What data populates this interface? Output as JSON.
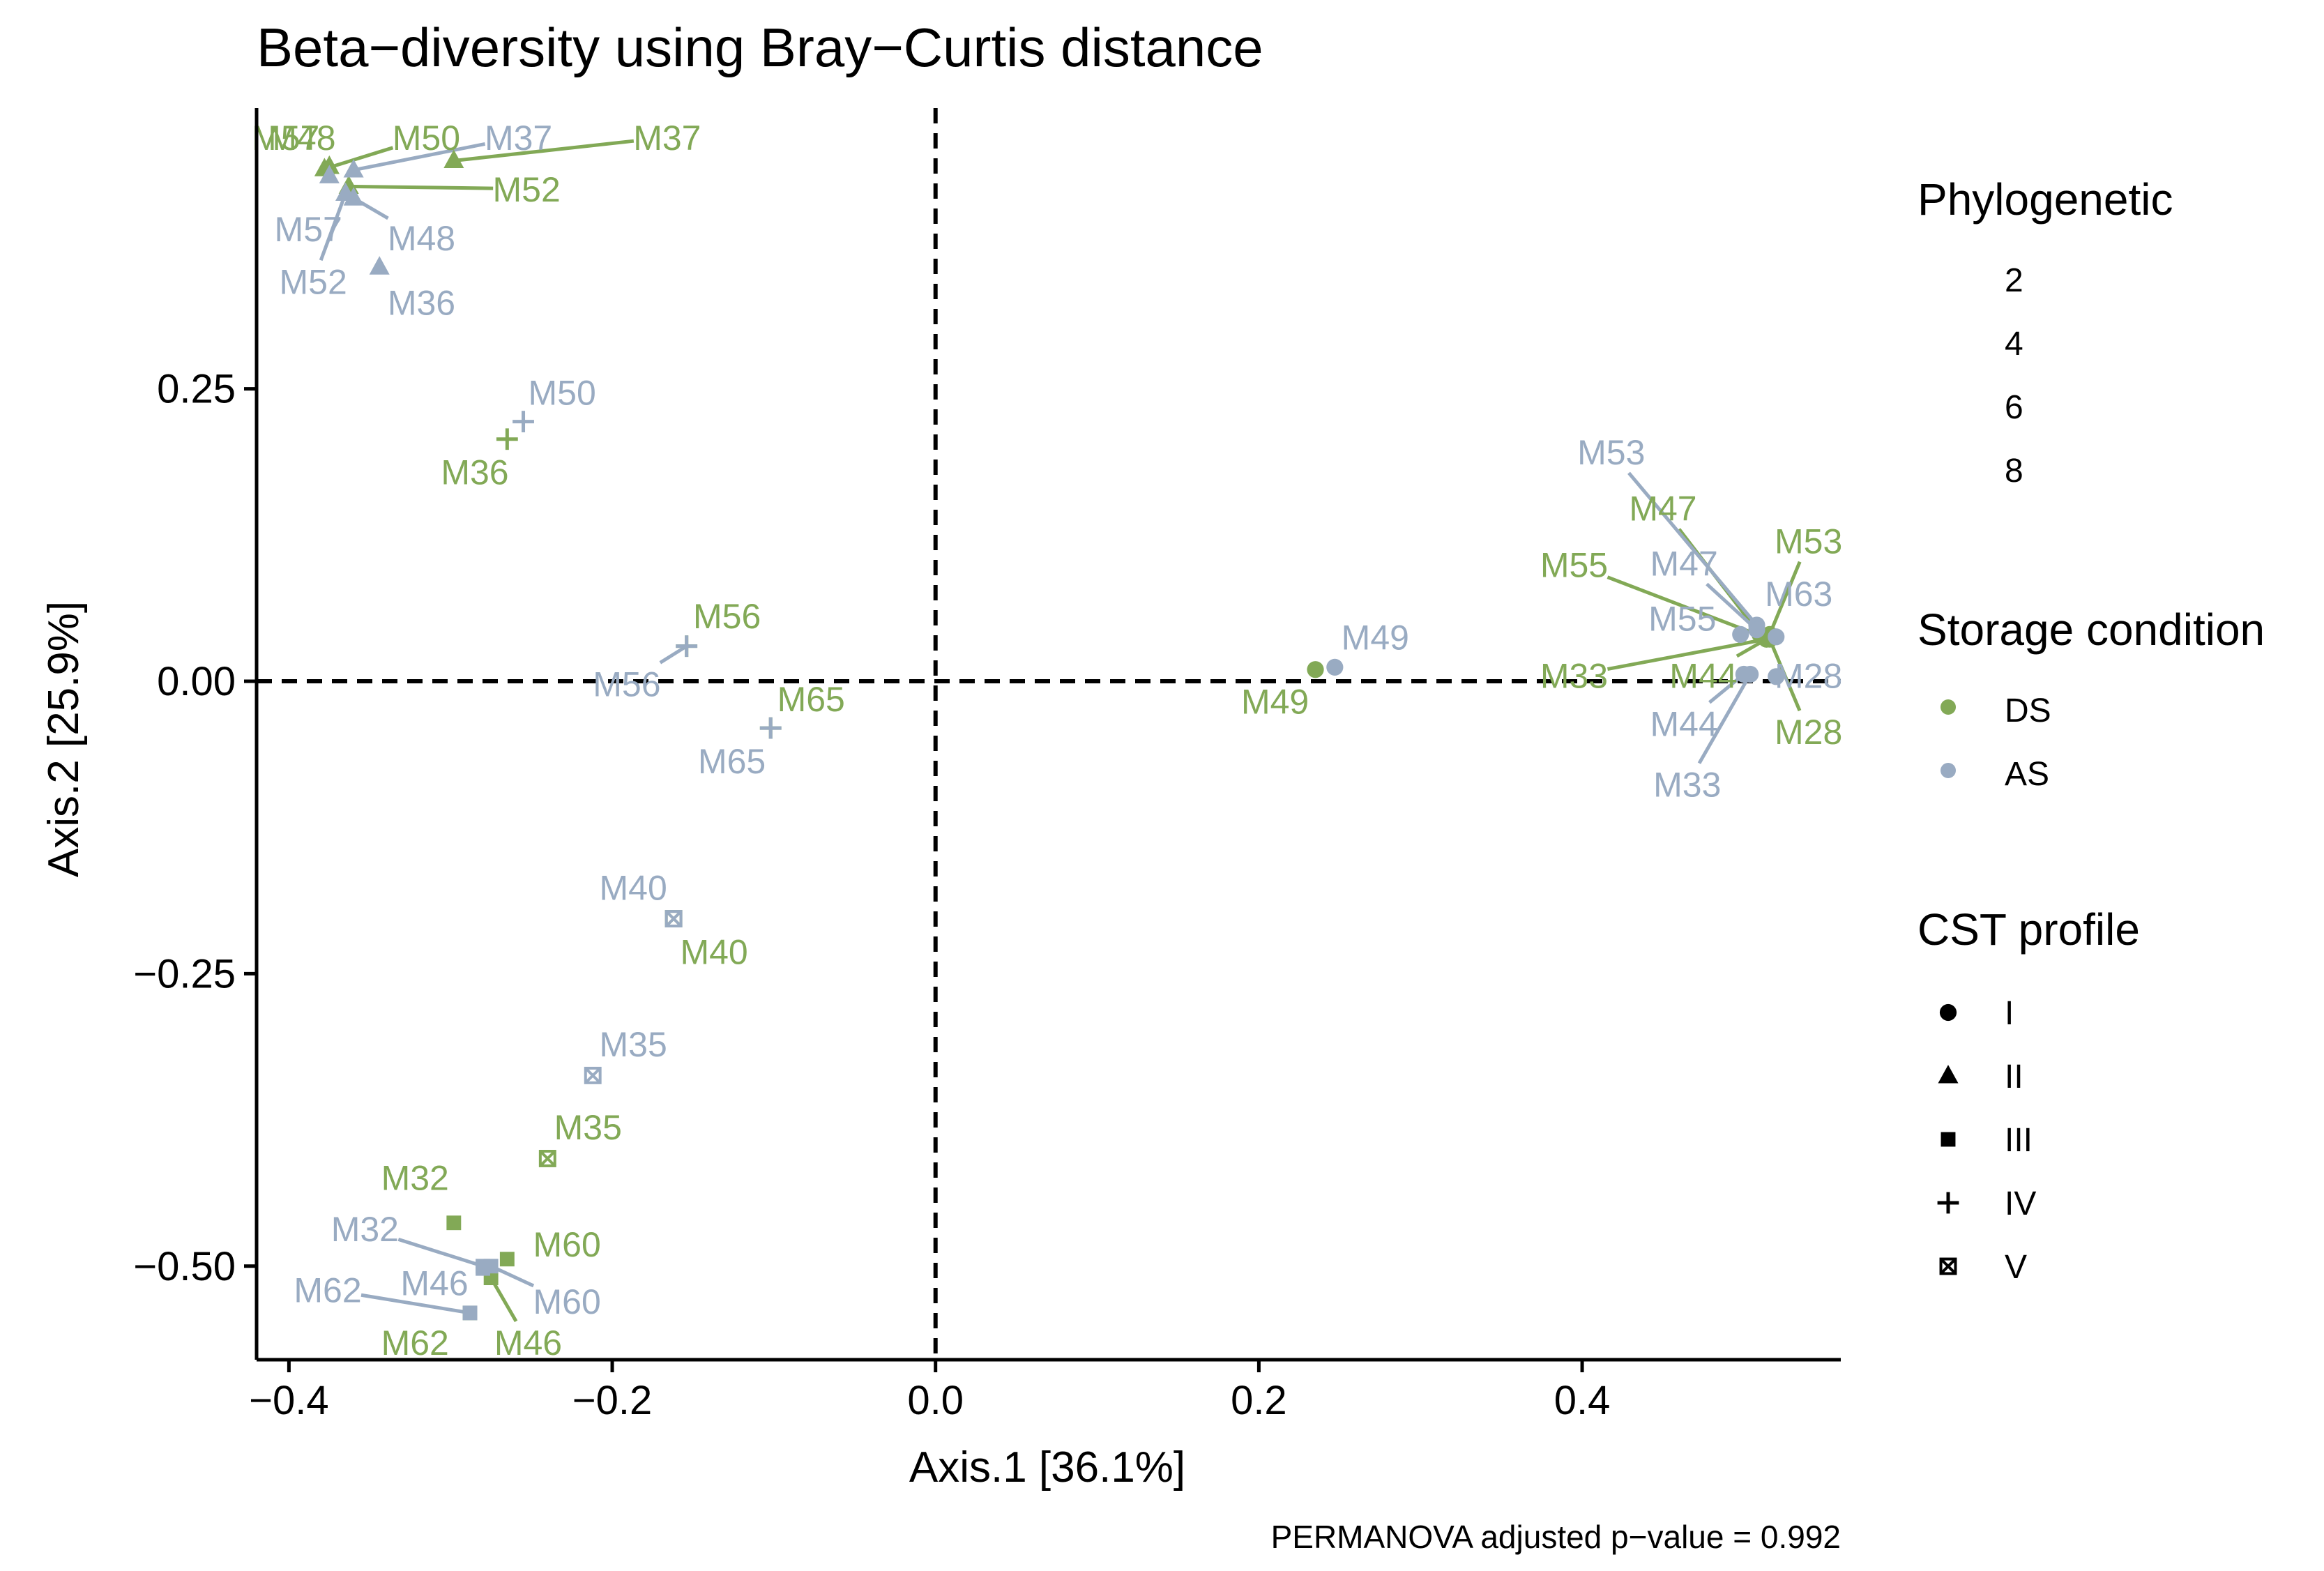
{
  "chart_data": {
    "type": "scatter",
    "title": "Beta−diversity using Bray−Curtis distance",
    "xlabel": "Axis.1   [36.1%]",
    "ylabel": "Axis.2   [25.9%]",
    "caption": "PERMANOVA adjusted p−value = 0.992",
    "xlim": [
      -0.42,
      0.56
    ],
    "ylim": [
      -0.58,
      0.49
    ],
    "x_ticks": [
      {
        "value": -0.4,
        "label": "−0.4"
      },
      {
        "value": -0.2,
        "label": "−0.2"
      },
      {
        "value": 0.0,
        "label": "0.0"
      },
      {
        "value": 0.2,
        "label": "0.2"
      },
      {
        "value": 0.4,
        "label": "0.4"
      }
    ],
    "y_ticks": [
      {
        "value": 0.25,
        "label": "0.25"
      },
      {
        "value": 0.0,
        "label": "0.00"
      },
      {
        "value": -0.25,
        "label": "−0.25"
      },
      {
        "value": -0.5,
        "label": "−0.50"
      }
    ],
    "reference_lines": {
      "x": 0,
      "y": 0,
      "style": "dashed"
    },
    "grid": false,
    "colors": {
      "DS": "#82a956",
      "AS": "#99abc2"
    },
    "legends": {
      "phylogenetic": {
        "title": "Phylogenetic",
        "items": [
          "2",
          "4",
          "6",
          "8"
        ]
      },
      "storage": {
        "title": "Storage condition",
        "items": [
          {
            "label": "DS",
            "key": "DS"
          },
          {
            "label": "AS",
            "key": "AS"
          }
        ]
      },
      "cst": {
        "title": "CST profile",
        "items": [
          {
            "label": "I",
            "shape": "circle"
          },
          {
            "label": "II",
            "shape": "triangle"
          },
          {
            "label": "III",
            "shape": "square"
          },
          {
            "label": "IV",
            "shape": "plus"
          },
          {
            "label": "V",
            "shape": "boxcross"
          }
        ]
      }
    },
    "points": [
      {
        "x": -0.375,
        "y": 0.44,
        "label": "M57",
        "storage": "DS",
        "cst": "II",
        "lx": -0.402,
        "ly": 0.465
      },
      {
        "x": -0.375,
        "y": 0.44,
        "label": "M48",
        "storage": "DS",
        "cst": "II",
        "lx": -0.392,
        "ly": 0.465
      },
      {
        "x": -0.378,
        "y": 0.438,
        "label": "M50",
        "storage": "DS",
        "cst": "II",
        "lx": -0.315,
        "ly": 0.465
      },
      {
        "x": -0.298,
        "y": 0.445,
        "label": "M37",
        "storage": "DS",
        "cst": "II",
        "lx": -0.166,
        "ly": 0.465
      },
      {
        "x": -0.363,
        "y": 0.423,
        "label": "M52",
        "storage": "DS",
        "cst": "II",
        "lx": -0.253,
        "ly": 0.421
      },
      {
        "x": -0.344,
        "y": 0.354,
        "label": "M36",
        "storage": "AS",
        "cst": "II",
        "lx": -0.318,
        "ly": 0.324
      },
      {
        "x": -0.36,
        "y": 0.437,
        "label": "M37",
        "storage": "AS",
        "cst": "II",
        "lx": -0.258,
        "ly": 0.465
      },
      {
        "x": -0.375,
        "y": 0.432,
        "label": "M57",
        "storage": "AS",
        "cst": "II",
        "lx": -0.388,
        "ly": 0.387
      },
      {
        "x": -0.36,
        "y": 0.413,
        "label": "M48",
        "storage": "AS",
        "cst": "II",
        "lx": -0.318,
        "ly": 0.379
      },
      {
        "x": -0.365,
        "y": 0.417,
        "label": "M52",
        "storage": "AS",
        "cst": "II",
        "lx": -0.385,
        "ly": 0.342
      },
      {
        "x": -0.265,
        "y": 0.207,
        "label": "M36",
        "storage": "DS",
        "cst": "IV",
        "lx": -0.285,
        "ly": 0.179
      },
      {
        "x": -0.255,
        "y": 0.222,
        "label": "M50",
        "storage": "AS",
        "cst": "IV",
        "lx": -0.231,
        "ly": 0.247
      },
      {
        "x": -0.154,
        "y": 0.03,
        "label": "M56",
        "storage": "DS",
        "cst": "IV",
        "lx": -0.129,
        "ly": 0.056
      },
      {
        "x": -0.154,
        "y": 0.03,
        "label": "M56",
        "storage": "AS",
        "cst": "IV",
        "lx": -0.191,
        "ly": -0.002
      },
      {
        "x": -0.102,
        "y": -0.04,
        "label": "M65",
        "storage": "DS",
        "cst": "IV",
        "lx": -0.077,
        "ly": -0.015
      },
      {
        "x": -0.102,
        "y": -0.04,
        "label": "M65",
        "storage": "AS",
        "cst": "IV",
        "lx": -0.126,
        "ly": -0.068
      },
      {
        "x": -0.162,
        "y": -0.203,
        "label": "M40",
        "storage": "DS",
        "cst": "V",
        "lx": -0.137,
        "ly": -0.231
      },
      {
        "x": -0.162,
        "y": -0.203,
        "label": "M40",
        "storage": "AS",
        "cst": "V",
        "lx": -0.187,
        "ly": -0.176
      },
      {
        "x": -0.24,
        "y": -0.408,
        "label": "M35",
        "storage": "DS",
        "cst": "V",
        "lx": -0.215,
        "ly": -0.381
      },
      {
        "x": -0.212,
        "y": -0.337,
        "label": "M35",
        "storage": "AS",
        "cst": "V",
        "lx": -0.187,
        "ly": -0.31
      },
      {
        "x": -0.298,
        "y": -0.463,
        "label": "M32",
        "storage": "DS",
        "cst": "III",
        "lx": -0.322,
        "ly": -0.424
      },
      {
        "x": -0.265,
        "y": -0.494,
        "label": "M60",
        "storage": "DS",
        "cst": "III",
        "lx": -0.228,
        "ly": -0.481
      },
      {
        "x": -0.275,
        "y": -0.51,
        "label": "M46",
        "storage": "DS",
        "cst": "III",
        "lx": -0.252,
        "ly": -0.565
      },
      {
        "x": -0.288,
        "y": -0.54,
        "label": "M62",
        "storage": "DS",
        "cst": "III",
        "lx": -0.322,
        "ly": -0.565
      },
      {
        "x": -0.28,
        "y": -0.5,
        "label": "M32",
        "storage": "AS",
        "cst": "III",
        "lx": -0.353,
        "ly": -0.468
      },
      {
        "x": -0.275,
        "y": -0.5,
        "label": "M60",
        "storage": "AS",
        "cst": "III",
        "lx": -0.228,
        "ly": -0.53
      },
      {
        "x": -0.28,
        "y": -0.502,
        "label": "M46",
        "storage": "AS",
        "cst": "III",
        "lx": -0.31,
        "ly": -0.514
      },
      {
        "x": -0.288,
        "y": -0.54,
        "label": "M62",
        "storage": "AS",
        "cst": "III",
        "lx": -0.376,
        "ly": -0.52
      },
      {
        "x": 0.235,
        "y": 0.01,
        "label": "M49",
        "storage": "DS",
        "cst": "I",
        "lx": 0.21,
        "ly": -0.017
      },
      {
        "x": 0.247,
        "y": 0.012,
        "label": "M49",
        "storage": "AS",
        "cst": "I",
        "lx": 0.272,
        "ly": 0.038
      },
      {
        "x": 0.51,
        "y": 0.04,
        "label": "M47",
        "storage": "DS",
        "cst": "I",
        "lx": 0.45,
        "ly": 0.148
      },
      {
        "x": 0.512,
        "y": 0.038,
        "label": "M55",
        "storage": "DS",
        "cst": "I",
        "lx": 0.395,
        "ly": 0.1
      },
      {
        "x": 0.516,
        "y": 0.04,
        "label": "M53",
        "storage": "DS",
        "cst": "I",
        "lx": 0.54,
        "ly": 0.12
      },
      {
        "x": 0.514,
        "y": 0.036,
        "label": "M33",
        "storage": "DS",
        "cst": "I",
        "lx": 0.395,
        "ly": 0.005
      },
      {
        "x": 0.514,
        "y": 0.036,
        "label": "M44",
        "storage": "DS",
        "cst": "I",
        "lx": 0.475,
        "ly": 0.005
      },
      {
        "x": 0.516,
        "y": 0.036,
        "label": "M28",
        "storage": "DS",
        "cst": "I",
        "lx": 0.54,
        "ly": -0.043
      },
      {
        "x": 0.508,
        "y": 0.048,
        "label": "M53",
        "storage": "AS",
        "cst": "I",
        "lx": 0.418,
        "ly": 0.196
      },
      {
        "x": 0.508,
        "y": 0.044,
        "label": "M47",
        "storage": "AS",
        "cst": "I",
        "lx": 0.463,
        "ly": 0.101
      },
      {
        "x": 0.498,
        "y": 0.04,
        "label": "M55",
        "storage": "AS",
        "cst": "I",
        "lx": 0.462,
        "ly": 0.054
      },
      {
        "x": 0.52,
        "y": 0.038,
        "label": "M63",
        "storage": "AS",
        "cst": "I",
        "lx": 0.534,
        "ly": 0.075
      },
      {
        "x": 0.52,
        "y": 0.004,
        "label": "M28",
        "storage": "AS",
        "cst": "I",
        "lx": 0.54,
        "ly": 0.005
      },
      {
        "x": 0.5,
        "y": 0.006,
        "label": "M44",
        "storage": "AS",
        "cst": "I",
        "lx": 0.463,
        "ly": -0.036
      },
      {
        "x": 0.504,
        "y": 0.006,
        "label": "M33",
        "storage": "AS",
        "cst": "I",
        "lx": 0.465,
        "ly": -0.088
      }
    ]
  }
}
